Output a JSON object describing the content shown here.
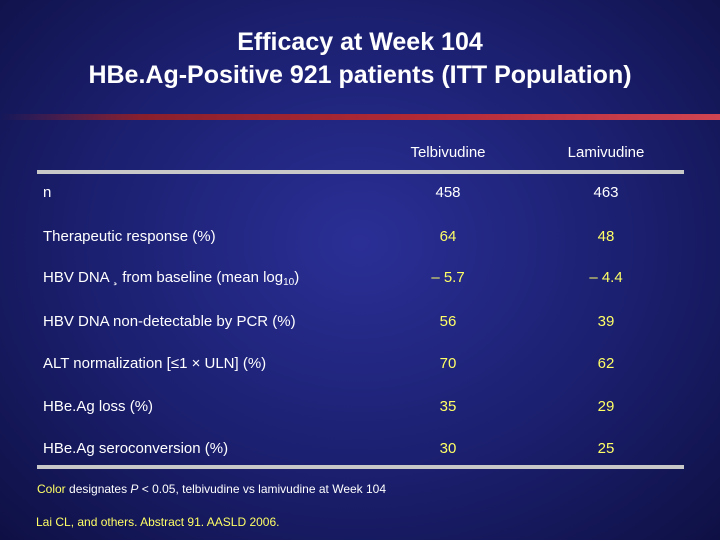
{
  "title": {
    "line1": "Efficacy at Week 104",
    "line2": "HBe.Ag-Positive 921 patients (ITT Population)"
  },
  "columns": {
    "col1": "Telbivudine",
    "col2": "Lamivudine"
  },
  "rows": [
    {
      "label": "n",
      "telbivudine": "458",
      "lamivudine": "463",
      "highlight": false
    },
    {
      "label": "Therapeutic response (%)",
      "telbivudine": "64",
      "lamivudine": "48",
      "highlight": true
    },
    {
      "label_prefix": "HBV DNA ",
      "label_glyph": "¸",
      "label_mid": " from baseline (mean log",
      "label_sub": "10",
      "label_suffix": ")",
      "telbivudine": "– 5.7",
      "lamivudine": "– 4.4",
      "highlight": true
    },
    {
      "label": "HBV DNA non-detectable by PCR (%)",
      "telbivudine": "56",
      "lamivudine": "39",
      "highlight": true
    },
    {
      "label": "ALT normalization [≤1 × ULN] (%)",
      "telbivudine": "70",
      "lamivudine": "62",
      "highlight": true
    },
    {
      "label": "HBe.Ag loss (%)",
      "telbivudine": "35",
      "lamivudine": "29",
      "highlight": true
    },
    {
      "label": "HBe.Ag seroconversion (%)",
      "telbivudine": "30",
      "lamivudine": "25",
      "highlight": true
    }
  ],
  "footnote": {
    "accent": "Color",
    "text_before_p": " designates ",
    "p": "P",
    "text_after_p": " < 0.05, telbivudine vs lamivudine at Week 104"
  },
  "citation": "Lai CL, and others. Abstract 91. AASLD 2006.",
  "colors": {
    "background": "#1b1f6e",
    "highlight": "#ffff66",
    "divider": "#b42a36",
    "rule": "#c8c8c8"
  }
}
